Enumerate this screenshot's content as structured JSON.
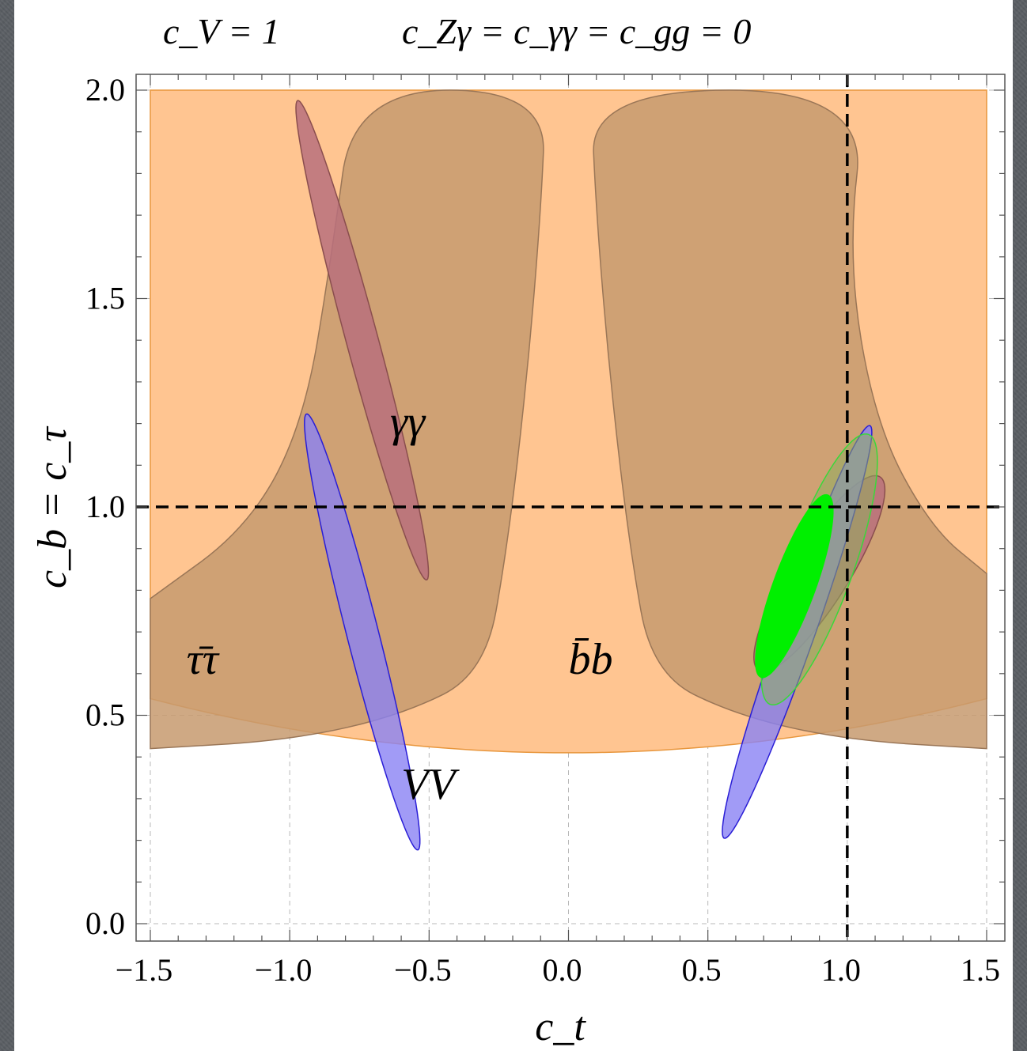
{
  "header": {
    "left_condition": "c_V = 1",
    "right_condition": "c_Zγ = c_γγ = c_gg = 0"
  },
  "chart_data": {
    "type": "contour",
    "xlabel": "c_t",
    "ylabel": "c_b = c_τ",
    "xlim": [
      -1.5,
      1.5
    ],
    "ylim": [
      0.0,
      2.0
    ],
    "xticks": [
      "−1.5",
      "−1.0",
      "−0.5",
      "0.0",
      "0.5",
      "1.0",
      "1.5"
    ],
    "yticks": [
      "0.0",
      "0.5",
      "1.0",
      "1.5",
      "2.0"
    ],
    "grid": "dashed at major ticks",
    "reference_lines": {
      "x": 1.0,
      "y": 1.0
    },
    "region_labels": [
      {
        "text": "γγ",
        "x": -0.64,
        "y": 1.17
      },
      {
        "text": "VV",
        "x": -0.6,
        "y": 0.3
      },
      {
        "text": "τ̄τ",
        "x": -1.37,
        "y": 0.6
      },
      {
        "text": "b̄b",
        "x": 0.0,
        "y": 0.6
      }
    ],
    "colors": {
      "bb_fill": "#ffc591",
      "bb_edge": "#e8963c",
      "tautau_fill": "#c79a6e",
      "tautau_edge": "#9a7657",
      "gammagamma_fill": "#b8707c",
      "gammagamma_edge": "#8a4e4e",
      "vv_fill": "#8a82f4",
      "vv_edge": "#2a1ed6",
      "combined_fill": "#00f000",
      "combined_edge": "#3ad83a"
    },
    "regions": {
      "bb": {
        "x_range": [
          -1.5,
          1.5
        ],
        "y_top": 2.0,
        "y_bottom_at_center": 0.41,
        "y_bottom_at_edges": 0.54
      },
      "tautau": [
        {
          "branch": "left",
          "outer": [
            [
              -1.5,
              0.42
            ],
            [
              -1.0,
              0.44
            ],
            [
              -0.6,
              0.5
            ],
            [
              -0.3,
              0.6
            ],
            [
              -0.22,
              0.9
            ],
            [
              -0.15,
              1.3
            ],
            [
              -0.1,
              1.7
            ],
            [
              -0.08,
              2.0
            ]
          ],
          "inner": [
            [
              -0.77,
              2.0
            ],
            [
              -0.85,
              1.6
            ],
            [
              -0.95,
              1.2
            ],
            [
              -1.15,
              0.95
            ],
            [
              -1.5,
              0.78
            ]
          ]
        },
        {
          "branch": "right",
          "outer": [
            [
              1.5,
              0.42
            ],
            [
              1.0,
              0.44
            ],
            [
              0.6,
              0.5
            ],
            [
              0.3,
              0.6
            ],
            [
              0.22,
              0.9
            ],
            [
              0.15,
              1.3
            ],
            [
              0.1,
              1.7
            ],
            [
              0.08,
              2.0
            ]
          ],
          "inner": [
            [
              1.07,
              2.0
            ],
            [
              1.0,
              1.6
            ],
            [
              1.1,
              1.2
            ],
            [
              1.3,
              0.95
            ],
            [
              1.5,
              0.84
            ]
          ]
        }
      ],
      "gammagamma": [
        {
          "center": [
            -0.74,
            1.4
          ],
          "angle_deg": -68,
          "semi_axes": [
            0.62,
            0.055
          ]
        },
        {
          "center": [
            0.9,
            0.84
          ],
          "angle_deg": 45,
          "semi_axes": [
            0.32,
            0.09
          ]
        }
      ],
      "vv": [
        {
          "center": [
            -0.74,
            0.7
          ],
          "angle_deg": -69,
          "semi_axes": [
            0.56,
            0.055
          ]
        },
        {
          "center": [
            0.82,
            0.7
          ],
          "angle_deg": 62,
          "semi_axes": [
            0.56,
            0.06
          ]
        }
      ],
      "combined_68": {
        "center": [
          0.81,
          0.81
        ],
        "angle_deg": 60,
        "semi_axes": [
          0.25,
          0.07
        ]
      },
      "combined_95": {
        "center": [
          0.9,
          0.85
        ],
        "angle_deg": 60,
        "semi_axes": [
          0.37,
          0.11
        ]
      }
    }
  }
}
